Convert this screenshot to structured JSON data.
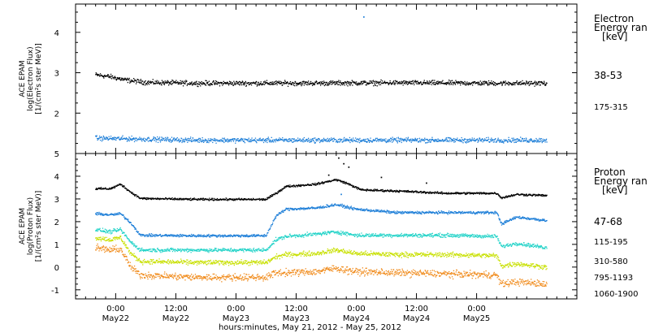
{
  "chart_data": [
    {
      "type": "scatter",
      "name_text": "electron-panel",
      "ylabel_lines": [
        "ACE EPAM",
        "log(Electron Flux)",
        "[1/(cm²s ster MeV)]"
      ],
      "ylim": [
        1.0,
        4.7
      ],
      "yticks": [
        2,
        3,
        4
      ],
      "legend_title": [
        "Electron",
        "Energy ran",
        "[keV]"
      ],
      "series": [
        {
          "name": "38-53",
          "color": "#000000",
          "profile": [
            [
              0,
              2.95
            ],
            [
              3,
              2.9
            ],
            [
              6,
              2.82
            ],
            [
              10,
              2.76
            ],
            [
              20,
              2.74
            ],
            [
              40,
              2.74
            ],
            [
              60,
              2.75
            ],
            [
              80,
              2.74
            ],
            [
              90,
              2.74
            ]
          ],
          "scatter": 0.05
        },
        {
          "name": "175-315",
          "color": "#1e7fd8",
          "profile": [
            [
              0,
              1.38
            ],
            [
              20,
              1.33
            ],
            [
              40,
              1.33
            ],
            [
              60,
              1.33
            ],
            [
              80,
              1.33
            ],
            [
              90,
              1.33
            ]
          ],
          "scatter": 0.05
        }
      ],
      "outliers": [
        {
          "x": 53.5,
          "y": 4.38,
          "color": "#1e7fd8"
        }
      ]
    },
    {
      "type": "scatter",
      "name_text": "proton-panel",
      "ylabel_lines": [
        "ACE EPAM",
        "log(Proton Flux)",
        "[1/(cm²s ster MeV)]"
      ],
      "ylim": [
        -1.4,
        5.0
      ],
      "yticks": [
        -1,
        0,
        1,
        2,
        3,
        4,
        5
      ],
      "legend_title": [
        "Proton",
        "Energy ran",
        "[keV]"
      ],
      "series": [
        {
          "name": "47-68",
          "color": "#000000",
          "profile": [
            [
              0,
              3.45
            ],
            [
              3,
              3.45
            ],
            [
              5,
              3.65
            ],
            [
              7,
              3.3
            ],
            [
              9,
              3.02
            ],
            [
              20,
              2.98
            ],
            [
              34,
              2.98
            ],
            [
              36,
              3.25
            ],
            [
              38,
              3.55
            ],
            [
              44,
              3.65
            ],
            [
              48,
              3.85
            ],
            [
              50,
              3.7
            ],
            [
              53,
              3.4
            ],
            [
              60,
              3.35
            ],
            [
              70,
              3.25
            ],
            [
              80,
              3.25
            ],
            [
              81,
              3.05
            ],
            [
              84,
              3.2
            ],
            [
              90,
              3.15
            ]
          ],
          "scatter": 0.04
        },
        {
          "name": "115-195",
          "color": "#1e7fd8",
          "profile": [
            [
              0,
              2.35
            ],
            [
              3,
              2.3
            ],
            [
              5,
              2.35
            ],
            [
              7,
              1.95
            ],
            [
              9,
              1.4
            ],
            [
              20,
              1.38
            ],
            [
              34,
              1.38
            ],
            [
              36,
              2.25
            ],
            [
              38,
              2.55
            ],
            [
              44,
              2.6
            ],
            [
              48,
              2.75
            ],
            [
              52,
              2.55
            ],
            [
              60,
              2.4
            ],
            [
              70,
              2.4
            ],
            [
              80,
              2.4
            ],
            [
              81,
              1.9
            ],
            [
              84,
              2.2
            ],
            [
              90,
              2.05
            ]
          ],
          "scatter": 0.05
        },
        {
          "name": "310-580",
          "color": "#22d3c8",
          "profile": [
            [
              0,
              1.65
            ],
            [
              3,
              1.55
            ],
            [
              5,
              1.65
            ],
            [
              7,
              1.1
            ],
            [
              9,
              0.75
            ],
            [
              20,
              0.75
            ],
            [
              34,
              0.75
            ],
            [
              36,
              1.2
            ],
            [
              38,
              1.35
            ],
            [
              44,
              1.45
            ],
            [
              48,
              1.55
            ],
            [
              52,
              1.4
            ],
            [
              60,
              1.4
            ],
            [
              70,
              1.4
            ],
            [
              80,
              1.35
            ],
            [
              81,
              0.9
            ],
            [
              84,
              1.05
            ],
            [
              90,
              0.85
            ]
          ],
          "scatter": 0.07
        },
        {
          "name": "795-1193",
          "color": "#c8e000",
          "profile": [
            [
              0,
              1.3
            ],
            [
              3,
              1.2
            ],
            [
              5,
              1.3
            ],
            [
              7,
              0.6
            ],
            [
              9,
              0.25
            ],
            [
              20,
              0.2
            ],
            [
              34,
              0.2
            ],
            [
              36,
              0.45
            ],
            [
              38,
              0.55
            ],
            [
              44,
              0.6
            ],
            [
              48,
              0.75
            ],
            [
              52,
              0.6
            ],
            [
              60,
              0.55
            ],
            [
              70,
              0.55
            ],
            [
              80,
              0.5
            ],
            [
              81,
              0.05
            ],
            [
              84,
              0.15
            ],
            [
              90,
              0.0
            ]
          ],
          "scatter": 0.09
        },
        {
          "name": "1060-1900",
          "color": "#f08a1a",
          "profile": [
            [
              0,
              0.85
            ],
            [
              3,
              0.75
            ],
            [
              5,
              0.8
            ],
            [
              7,
              0.0
            ],
            [
              9,
              -0.35
            ],
            [
              20,
              -0.45
            ],
            [
              34,
              -0.45
            ],
            [
              36,
              -0.25
            ],
            [
              38,
              -0.25
            ],
            [
              44,
              -0.2
            ],
            [
              48,
              -0.05
            ],
            [
              52,
              -0.2
            ],
            [
              60,
              -0.25
            ],
            [
              70,
              -0.3
            ],
            [
              80,
              -0.35
            ],
            [
              81,
              -0.75
            ],
            [
              84,
              -0.65
            ],
            [
              90,
              -0.75
            ]
          ],
          "scatter": 0.13
        }
      ],
      "outliers": [
        {
          "x": 48.5,
          "y": 4.8,
          "color": "#000000"
        },
        {
          "x": 49.5,
          "y": 4.55,
          "color": "#000000"
        },
        {
          "x": 50.5,
          "y": 4.4,
          "color": "#000000"
        },
        {
          "x": 46.5,
          "y": 4.05,
          "color": "#000000"
        },
        {
          "x": 49.0,
          "y": 3.2,
          "color": "#1e7fd8"
        },
        {
          "x": 57.0,
          "y": 3.95,
          "color": "#000000"
        },
        {
          "x": 66.0,
          "y": 3.7,
          "color": "#000000"
        }
      ]
    }
  ],
  "time_axis": {
    "unit": "hours since 2012-05-21 20:00 UT",
    "xlim": [
      -4,
      96
    ],
    "ticks": [
      {
        "x": 4,
        "top": "0:00",
        "bottom": "May22"
      },
      {
        "x": 16,
        "top": "12:00",
        "bottom": "May22"
      },
      {
        "x": 28,
        "top": "0:00",
        "bottom": "May23"
      },
      {
        "x": 40,
        "top": "12:00",
        "bottom": "May23"
      },
      {
        "x": 52,
        "top": "0:00",
        "bottom": "May24"
      },
      {
        "x": 64,
        "top": "12:00",
        "bottom": "May24"
      },
      {
        "x": 76,
        "top": "0:00",
        "bottom": "May25"
      }
    ],
    "xlabel": "hours:minutes, May 21, 2012 - May 25, 2012"
  }
}
